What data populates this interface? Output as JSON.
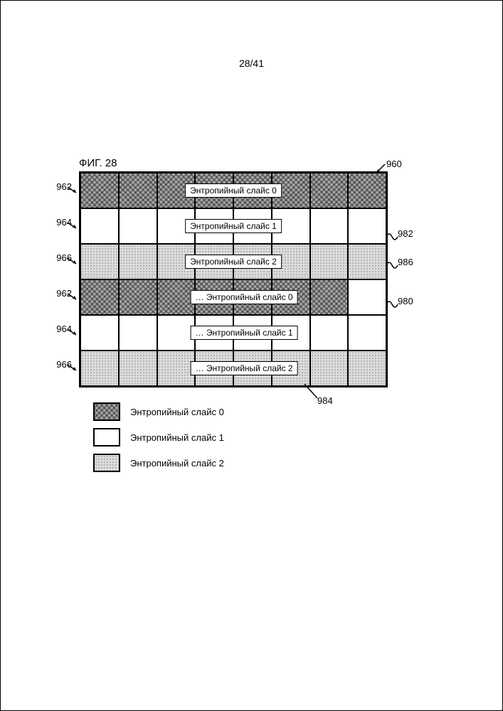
{
  "page_number": "28/41",
  "figure_label": "ФИГ. 28",
  "grid": {
    "cols": 8,
    "rows": [
      {
        "fill": 0,
        "label": "Энтропийный слайс 0",
        "label_align": "center",
        "ellipsis": false,
        "left_ref": "962"
      },
      {
        "fill": 1,
        "label": "Энтропийный слайс 1",
        "label_align": "center",
        "ellipsis": false,
        "left_ref": "964"
      },
      {
        "fill": 2,
        "label": "Энтропийный слайс 2",
        "label_align": "center",
        "ellipsis": false,
        "left_ref": "966"
      },
      {
        "fill": 0,
        "label": "Энтропийный слайс 0",
        "label_align": "right",
        "ellipsis": true,
        "left_ref": "962",
        "last_cell_white": true
      },
      {
        "fill": 1,
        "label": "Энтропийный слайс 1",
        "label_align": "right",
        "ellipsis": true,
        "left_ref": "964"
      },
      {
        "fill": 2,
        "label": "Энтропийный слайс 2",
        "label_align": "right",
        "ellipsis": true,
        "left_ref": "966"
      }
    ]
  },
  "refs_right": {
    "top": {
      "num": "960"
    },
    "r982": {
      "num": "982"
    },
    "r986": {
      "num": "986"
    },
    "r980": {
      "num": "980"
    }
  },
  "ref_bottom": {
    "num": "984"
  },
  "legend": [
    {
      "fill": 0,
      "text": "Энтропийный слайс 0"
    },
    {
      "fill": 1,
      "text": "Энтропийный слайс 1"
    },
    {
      "fill": 2,
      "text": "Энтропийный слайс 2"
    }
  ],
  "colors": {
    "border": "#000000",
    "bg": "#ffffff"
  }
}
